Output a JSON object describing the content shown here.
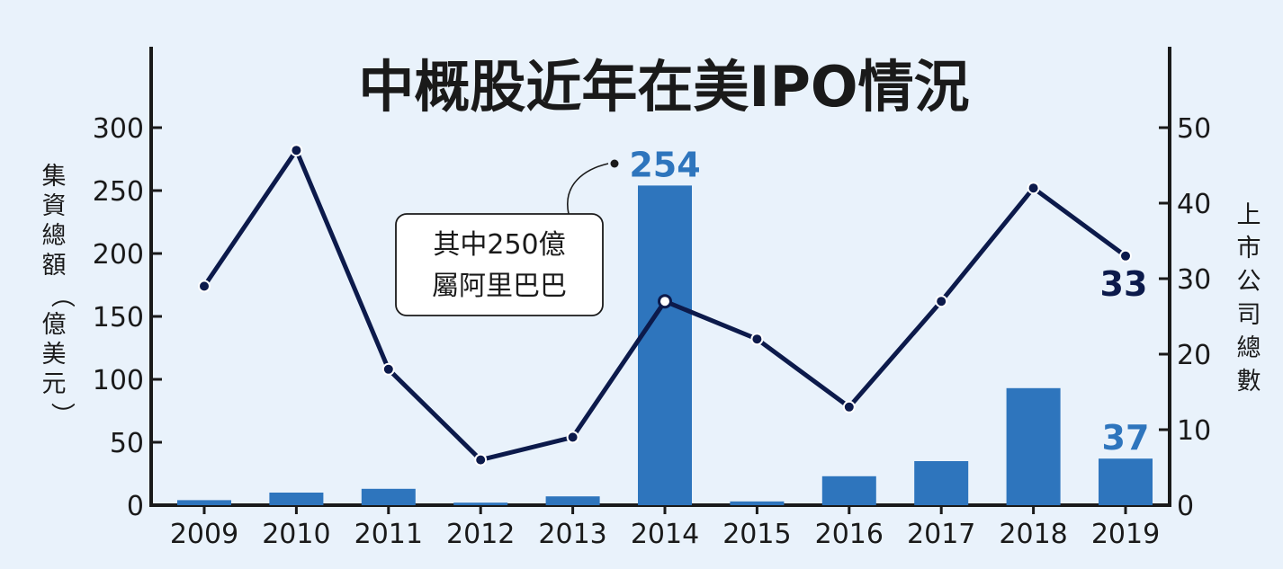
{
  "chart_data": {
    "type": "bar+line",
    "title": "中概股近年在美IPO情況",
    "categories": [
      "2009",
      "2010",
      "2011",
      "2012",
      "2013",
      "2014",
      "2015",
      "2016",
      "2017",
      "2018",
      "2019"
    ],
    "series": [
      {
        "kind": "bar",
        "axis": "left",
        "values": [
          4,
          10,
          13,
          2,
          7,
          254,
          3,
          23,
          35,
          93,
          37
        ]
      },
      {
        "kind": "line",
        "axis": "right",
        "values": [
          29,
          47,
          18,
          6,
          9,
          27,
          22,
          13,
          27,
          42,
          33
        ]
      }
    ],
    "y_left": {
      "label": "集資總額（億美元）",
      "lim": [
        0,
        300
      ],
      "ticks": [
        0,
        50,
        100,
        150,
        200,
        250,
        300
      ]
    },
    "y_right": {
      "label": "上市公司總數",
      "lim": [
        0,
        50
      ],
      "ticks": [
        0,
        10,
        20,
        30,
        40,
        50
      ]
    },
    "data_labels": [
      {
        "series": 0,
        "index": 5,
        "text": "254"
      },
      {
        "series": 0,
        "index": 10,
        "text": "37"
      },
      {
        "series": 1,
        "index": 10,
        "text": "33"
      }
    ],
    "annotation": {
      "lines": [
        "其中250億",
        "屬阿里巴巴"
      ],
      "points_to_index": 5
    },
    "colors": {
      "bar": "#2e75bd",
      "line": "#0c1a4b",
      "background": "#e9f2fb"
    },
    "grid": false
  }
}
